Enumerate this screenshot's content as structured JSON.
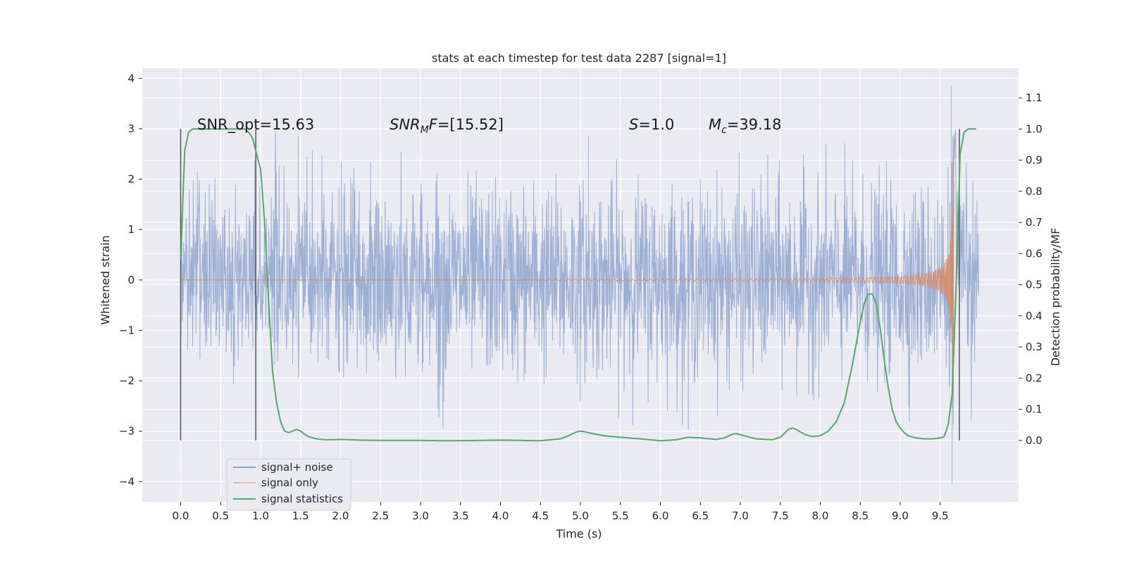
{
  "chart_data": {
    "type": "line",
    "title": "stats at each timestep for test data 2287 [signal=1]",
    "xlabel": "Time (s)",
    "ylabel": "Whitened strain",
    "y2label": "Detection probability/MF",
    "xlim": [
      -0.48,
      10.48
    ],
    "ylim": [
      -4.4,
      4.2
    ],
    "y2lim": [
      -0.197,
      1.195
    ],
    "x_ticks": [
      "0.0",
      "0.5",
      "1.0",
      "1.5",
      "2.0",
      "2.5",
      "3.0",
      "3.5",
      "4.0",
      "4.5",
      "5.0",
      "5.5",
      "6.0",
      "6.5",
      "7.0",
      "7.5",
      "8.0",
      "8.5",
      "9.0",
      "9.5"
    ],
    "y_ticks": [
      "4",
      "3",
      "2",
      "1",
      "0",
      "−1",
      "−2",
      "−3",
      "−4"
    ],
    "y2_ticks": [
      "1.1",
      "1.0",
      "0.9",
      "0.8",
      "0.7",
      "0.6",
      "0.5",
      "0.4",
      "0.3",
      "0.2",
      "0.1",
      "0.0"
    ],
    "grid": true,
    "legend_position": "lower-left",
    "annotations": [
      "SNR_opt=15.63",
      "=[15.52]",
      "=1.0",
      "=39.18"
    ],
    "colors": {
      "noise": "#8ea4cf",
      "signal": "#dd8452",
      "stats": "#55a868",
      "markers": "#555555",
      "plot_bg": "#eaeaf2",
      "grid": "#ffffff"
    },
    "series": [
      {
        "name": "signal+ noise",
        "axis": "left",
        "x_range": [
          0.0,
          9.98
        ],
        "envelope_typical": 1.2,
        "envelope_peaks": 3.0,
        "notable_points": [
          [
            9.64,
            3.85
          ],
          [
            9.65,
            -4.05
          ],
          [
            1.47,
            2.85
          ],
          [
            5.1,
            2.85
          ],
          [
            0.0,
            1.35
          ]
        ]
      },
      {
        "name": "signal only",
        "axis": "left",
        "x_range": [
          0.0,
          9.7
        ],
        "chirp_start": 4.5,
        "merger_time": 9.67,
        "peak_amplitude": 3.3
      },
      {
        "name": "signal statistics",
        "axis": "right",
        "x": [
          0.0,
          0.05,
          0.1,
          0.15,
          0.2,
          0.3,
          0.4,
          0.5,
          0.6,
          0.7,
          0.8,
          0.85,
          0.9,
          0.95,
          1.0,
          1.05,
          1.1,
          1.15,
          1.2,
          1.25,
          1.3,
          1.35,
          1.4,
          1.45,
          1.5,
          1.55,
          1.6,
          1.7,
          1.8,
          1.9,
          2.0,
          2.25,
          2.5,
          2.75,
          3.0,
          3.25,
          3.5,
          3.75,
          4.0,
          4.25,
          4.5,
          4.75,
          4.85,
          4.95,
          5.0,
          5.05,
          5.15,
          5.3,
          5.5,
          5.75,
          6.0,
          6.2,
          6.35,
          6.5,
          6.7,
          6.8,
          6.9,
          6.95,
          7.05,
          7.2,
          7.4,
          7.5,
          7.6,
          7.65,
          7.7,
          7.8,
          7.9,
          8.0,
          8.1,
          8.2,
          8.3,
          8.35,
          8.4,
          8.45,
          8.5,
          8.55,
          8.6,
          8.65,
          8.7,
          8.75,
          8.8,
          8.85,
          8.9,
          8.95,
          9.0,
          9.05,
          9.1,
          9.2,
          9.3,
          9.4,
          9.5,
          9.55,
          9.6,
          9.65,
          9.7,
          9.75,
          9.8,
          9.85,
          9.9,
          9.95
        ],
        "y": [
          0.58,
          0.93,
          0.99,
          1.0,
          1.0,
          1.0,
          1.0,
          1.0,
          1.0,
          1.0,
          1.0,
          0.99,
          0.97,
          0.92,
          0.87,
          0.7,
          0.45,
          0.22,
          0.12,
          0.06,
          0.03,
          0.025,
          0.03,
          0.035,
          0.03,
          0.02,
          0.012,
          0.005,
          0.002,
          0.002,
          0.003,
          0.001,
          0.0,
          0.0,
          0.0,
          -0.001,
          -0.001,
          0.0,
          0.001,
          0.0,
          -0.001,
          0.005,
          0.015,
          0.027,
          0.03,
          0.028,
          0.022,
          0.015,
          0.01,
          0.005,
          -0.001,
          0.002,
          0.01,
          0.008,
          0.003,
          0.008,
          0.02,
          0.022,
          0.015,
          0.005,
          0.002,
          0.01,
          0.035,
          0.04,
          0.035,
          0.02,
          0.012,
          0.015,
          0.03,
          0.06,
          0.12,
          0.18,
          0.24,
          0.31,
          0.38,
          0.44,
          0.47,
          0.47,
          0.44,
          0.36,
          0.26,
          0.17,
          0.1,
          0.06,
          0.04,
          0.025,
          0.015,
          0.008,
          0.005,
          0.005,
          0.008,
          0.012,
          0.05,
          0.15,
          0.5,
          0.92,
          0.99,
          1.0,
          1.0,
          1.0
        ]
      }
    ],
    "vertical_markers_x": [
      0.0,
      0.94,
      9.74
    ]
  }
}
